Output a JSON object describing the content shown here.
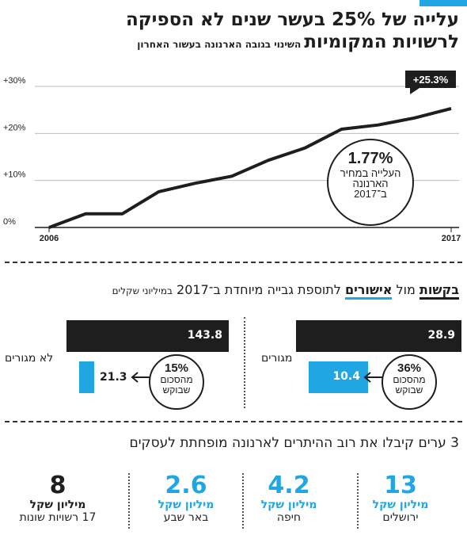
{
  "header": {
    "title_line1": "עלייה של 25% בעשר שנים לא הספיקה",
    "title_line2": "לרשויות המקומיות",
    "subtitle": "השינוי בגובה הארנונה בעשור האחרון"
  },
  "chart_data": [
    {
      "type": "line",
      "x": [
        2006,
        2007,
        2008,
        2009,
        2010,
        2011,
        2012,
        2013,
        2014,
        2015,
        2016,
        2017
      ],
      "values": [
        0,
        2.9,
        2.9,
        7.6,
        9.4,
        10.9,
        14.3,
        16.9,
        20.9,
        21.8,
        23.3,
        25.3
      ],
      "x_tick_labels": [
        "2006",
        "2017"
      ],
      "y_tick_labels": [
        "0%",
        "+10%",
        "+20%",
        "+30%"
      ],
      "ylim": [
        0,
        30
      ],
      "grid": true,
      "end_label": "+25.3%",
      "annotation": {
        "value": "1.77%",
        "text": [
          "העלייה במחיר",
          "הארנונה",
          "ב־2017"
        ]
      }
    },
    {
      "type": "bar",
      "title_parts": [
        "בקשות",
        " מול ",
        "אישורים",
        " לתוספת גבייה מיוחדת ב־2017 ",
        "במיליוני שקלים"
      ],
      "groups": [
        {
          "name": "מגורים",
          "requests": 28.9,
          "approvals": 10.4,
          "requests_label": "28.9",
          "approvals_label": "10.4",
          "approved_pct": "36%",
          "approved_text": [
            "מהסכום",
            "שבוקש"
          ]
        },
        {
          "name": "לא מגורים",
          "requests": 143.8,
          "approvals": 21.3,
          "requests_label": "143.8",
          "approvals_label": "21.3",
          "approved_pct": "15%",
          "approved_text": [
            "מהסכום",
            "שבוקש"
          ]
        }
      ]
    }
  ],
  "stats": {
    "title": "3 ערים קיבלו את רוב ההיתרים לארנונה מופחתת לעסקים",
    "items": [
      {
        "number": "13",
        "unit": "מיליון שקל",
        "city": "ירושלים",
        "color": "#1fa6e3"
      },
      {
        "number": "4.2",
        "unit": "מיליון שקל",
        "city": "חיפה",
        "color": "#1fa6e3"
      },
      {
        "number": "2.6",
        "unit": "מיליון שקל",
        "city": "באר שבע",
        "color": "#1fa6e3"
      },
      {
        "number": "8",
        "unit": "מיליון שקל",
        "city": "17 רשויות שונות",
        "color": "#1e1e1e"
      }
    ]
  },
  "colors": {
    "accent": "#1fa6e3",
    "dark": "#1e1e1e"
  }
}
